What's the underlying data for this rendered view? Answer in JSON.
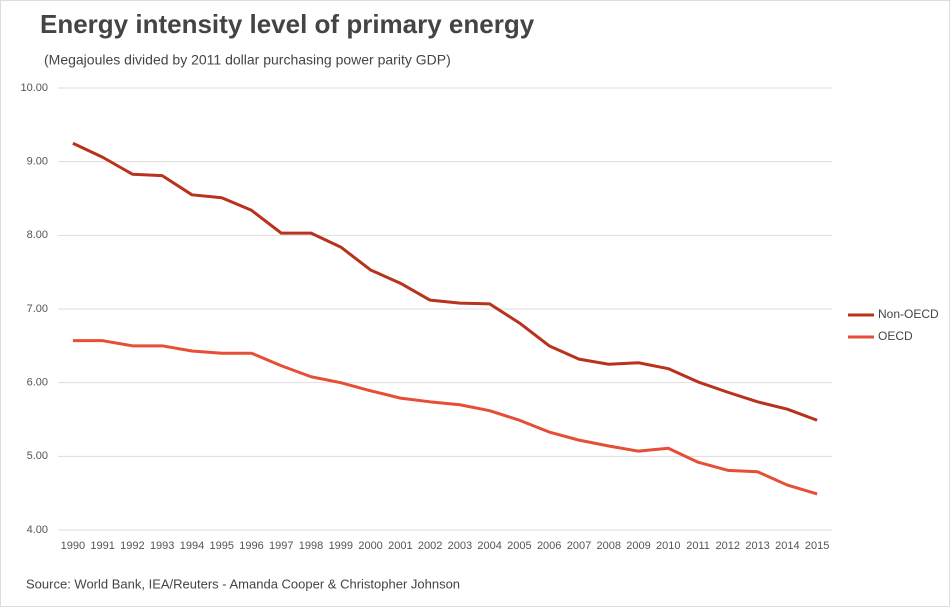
{
  "chart_data": {
    "type": "line",
    "title": "Energy intensity level of primary energy",
    "subtitle": "(Megajoules divided by 2011 dollar purchasing power parity GDP)",
    "source": "Source: World Bank, IEA/Reuters - Amanda Cooper & Christopher Johnson",
    "categories": [
      "1990",
      "1991",
      "1992",
      "1993",
      "1994",
      "1995",
      "1996",
      "1997",
      "1998",
      "1999",
      "2000",
      "2001",
      "2002",
      "2003",
      "2004",
      "2005",
      "2006",
      "2007",
      "2008",
      "2009",
      "2010",
      "2011",
      "2012",
      "2013",
      "2014",
      "2015"
    ],
    "series": [
      {
        "name": "Non-OECD",
        "color": "#b8321c",
        "values": [
          9.25,
          9.06,
          8.83,
          8.81,
          8.55,
          8.51,
          8.34,
          8.03,
          8.03,
          7.84,
          7.53,
          7.35,
          7.12,
          7.08,
          7.07,
          6.81,
          6.5,
          6.32,
          6.25,
          6.27,
          6.19,
          6.01,
          5.87,
          5.74,
          5.64,
          5.49
        ]
      },
      {
        "name": "OECD",
        "color": "#e64e35",
        "values": [
          6.57,
          6.57,
          6.5,
          6.5,
          6.43,
          6.4,
          6.4,
          6.23,
          6.08,
          6.0,
          5.89,
          5.79,
          5.74,
          5.7,
          5.62,
          5.49,
          5.33,
          5.22,
          5.14,
          5.07,
          5.11,
          4.92,
          4.81,
          4.79,
          4.61,
          4.49
        ]
      }
    ],
    "ylim": [
      4,
      10
    ],
    "yticks": [
      {
        "value": 4,
        "label": "4.00"
      },
      {
        "value": 5,
        "label": "5.00"
      },
      {
        "value": 6,
        "label": "6.00"
      },
      {
        "value": 7,
        "label": "7.00"
      },
      {
        "value": 8,
        "label": "8.00"
      },
      {
        "value": 9,
        "label": "9.00"
      },
      {
        "value": 10,
        "label": "10.00"
      }
    ],
    "grid": true,
    "legend": "right"
  }
}
